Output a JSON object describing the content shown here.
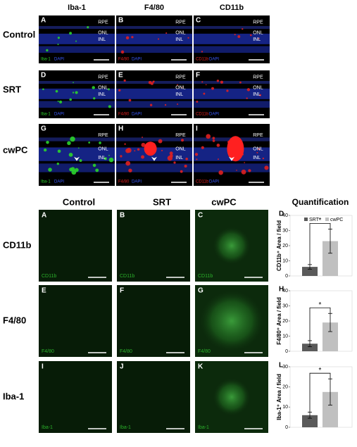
{
  "top": {
    "columns": [
      "Iba-1",
      "F4/80",
      "CD11b"
    ],
    "rows": [
      "Control",
      "SRT",
      "cwPC"
    ],
    "panels": [
      [
        {
          "letter": "A",
          "layers": [
            "RPE",
            "ONL",
            "INL"
          ],
          "stain": "Iba-1",
          "counter": "DAPI"
        },
        {
          "letter": "B",
          "layers": [
            "RPE",
            "ONL",
            "INL"
          ],
          "stain": "F4/80",
          "counter": "DAPI"
        },
        {
          "letter": "C",
          "layers": [
            "RPE",
            "ONL",
            "INL"
          ],
          "stain": "CD11b",
          "counter": "DAPI"
        }
      ],
      [
        {
          "letter": "D",
          "layers": [
            "RPE",
            "ONL",
            "INL"
          ],
          "stain": "Iba-1",
          "counter": "DAPI"
        },
        {
          "letter": "E",
          "layers": [
            "RPE",
            "ONL",
            "INL"
          ],
          "stain": "F4/80",
          "counter": "DAPI"
        },
        {
          "letter": "F",
          "layers": [
            "RPE",
            "ONL",
            "INL"
          ],
          "stain": "CD11b",
          "counter": "DAPI"
        }
      ],
      [
        {
          "letter": "G",
          "layers": [
            "RPE",
            "ONL",
            "INL"
          ],
          "stain": "Iba-1",
          "counter": "DAPI"
        },
        {
          "letter": "H",
          "layers": [
            "RPE",
            "ONL",
            "INL"
          ],
          "stain": "F4/80",
          "counter": "DAPI"
        },
        {
          "letter": "I",
          "layers": [
            "RPE",
            "ONL",
            "INL"
          ],
          "stain": "CD11b",
          "counter": "DAPI"
        }
      ]
    ]
  },
  "bottom": {
    "columns": [
      "Control",
      "SRT",
      "cwPC"
    ],
    "quant_title": "Quantification",
    "rows": [
      "CD11b",
      "F4/80",
      "Iba-1"
    ],
    "panels": [
      [
        {
          "letter": "A",
          "stain": "CD11b"
        },
        {
          "letter": "B",
          "stain": "CD11b"
        },
        {
          "letter": "C",
          "stain": "CD11b"
        }
      ],
      [
        {
          "letter": "E",
          "stain": "F4/80"
        },
        {
          "letter": "F",
          "stain": "F4/80"
        },
        {
          "letter": "G",
          "stain": "F4/80"
        }
      ],
      [
        {
          "letter": "I",
          "stain": "Iba-1"
        },
        {
          "letter": "J",
          "stain": "Iba-1"
        },
        {
          "letter": "K",
          "stain": "Iba-1"
        }
      ]
    ]
  },
  "chart_data": [
    {
      "type": "bar",
      "label": "D",
      "y_label": "CD11b⁺ Area / field",
      "categories": [
        null
      ],
      "annotation": "*",
      "legend": "top",
      "ylim": [
        0,
        40
      ],
      "yticks": [
        0,
        10,
        20,
        30,
        40
      ],
      "series": [
        {
          "name": "SRT",
          "color": "#5a5a5a",
          "values": [
            6
          ],
          "errors": [
            1.5
          ]
        },
        {
          "name": "cwPC",
          "color": "#c0c0c0",
          "values": [
            23
          ],
          "errors": [
            8
          ]
        }
      ]
    },
    {
      "type": "bar",
      "label": "H",
      "y_label": "F4/80⁺ Area / field",
      "categories": [
        null
      ],
      "annotation": "*",
      "ylim": [
        0,
        40
      ],
      "yticks": [
        0,
        10,
        20,
        30,
        40
      ],
      "series": [
        {
          "color": "#5a5a5a",
          "values": [
            5
          ],
          "errors": [
            2
          ]
        },
        {
          "color": "#c0c0c0",
          "values": [
            19
          ],
          "errors": [
            6
          ]
        }
      ]
    },
    {
      "type": "bar",
      "label": "L",
      "y_label": "Iba-1⁺ Area / field",
      "categories": [
        null
      ],
      "annotation": "*",
      "ylim": [
        0,
        30
      ],
      "yticks": [
        0,
        10,
        20,
        30
      ],
      "series": [
        {
          "color": "#5a5a5a",
          "values": [
            6
          ],
          "errors": [
            1.5
          ]
        },
        {
          "color": "#c0c0c0",
          "values": [
            17.5
          ],
          "errors": [
            6.5
          ]
        }
      ]
    }
  ]
}
